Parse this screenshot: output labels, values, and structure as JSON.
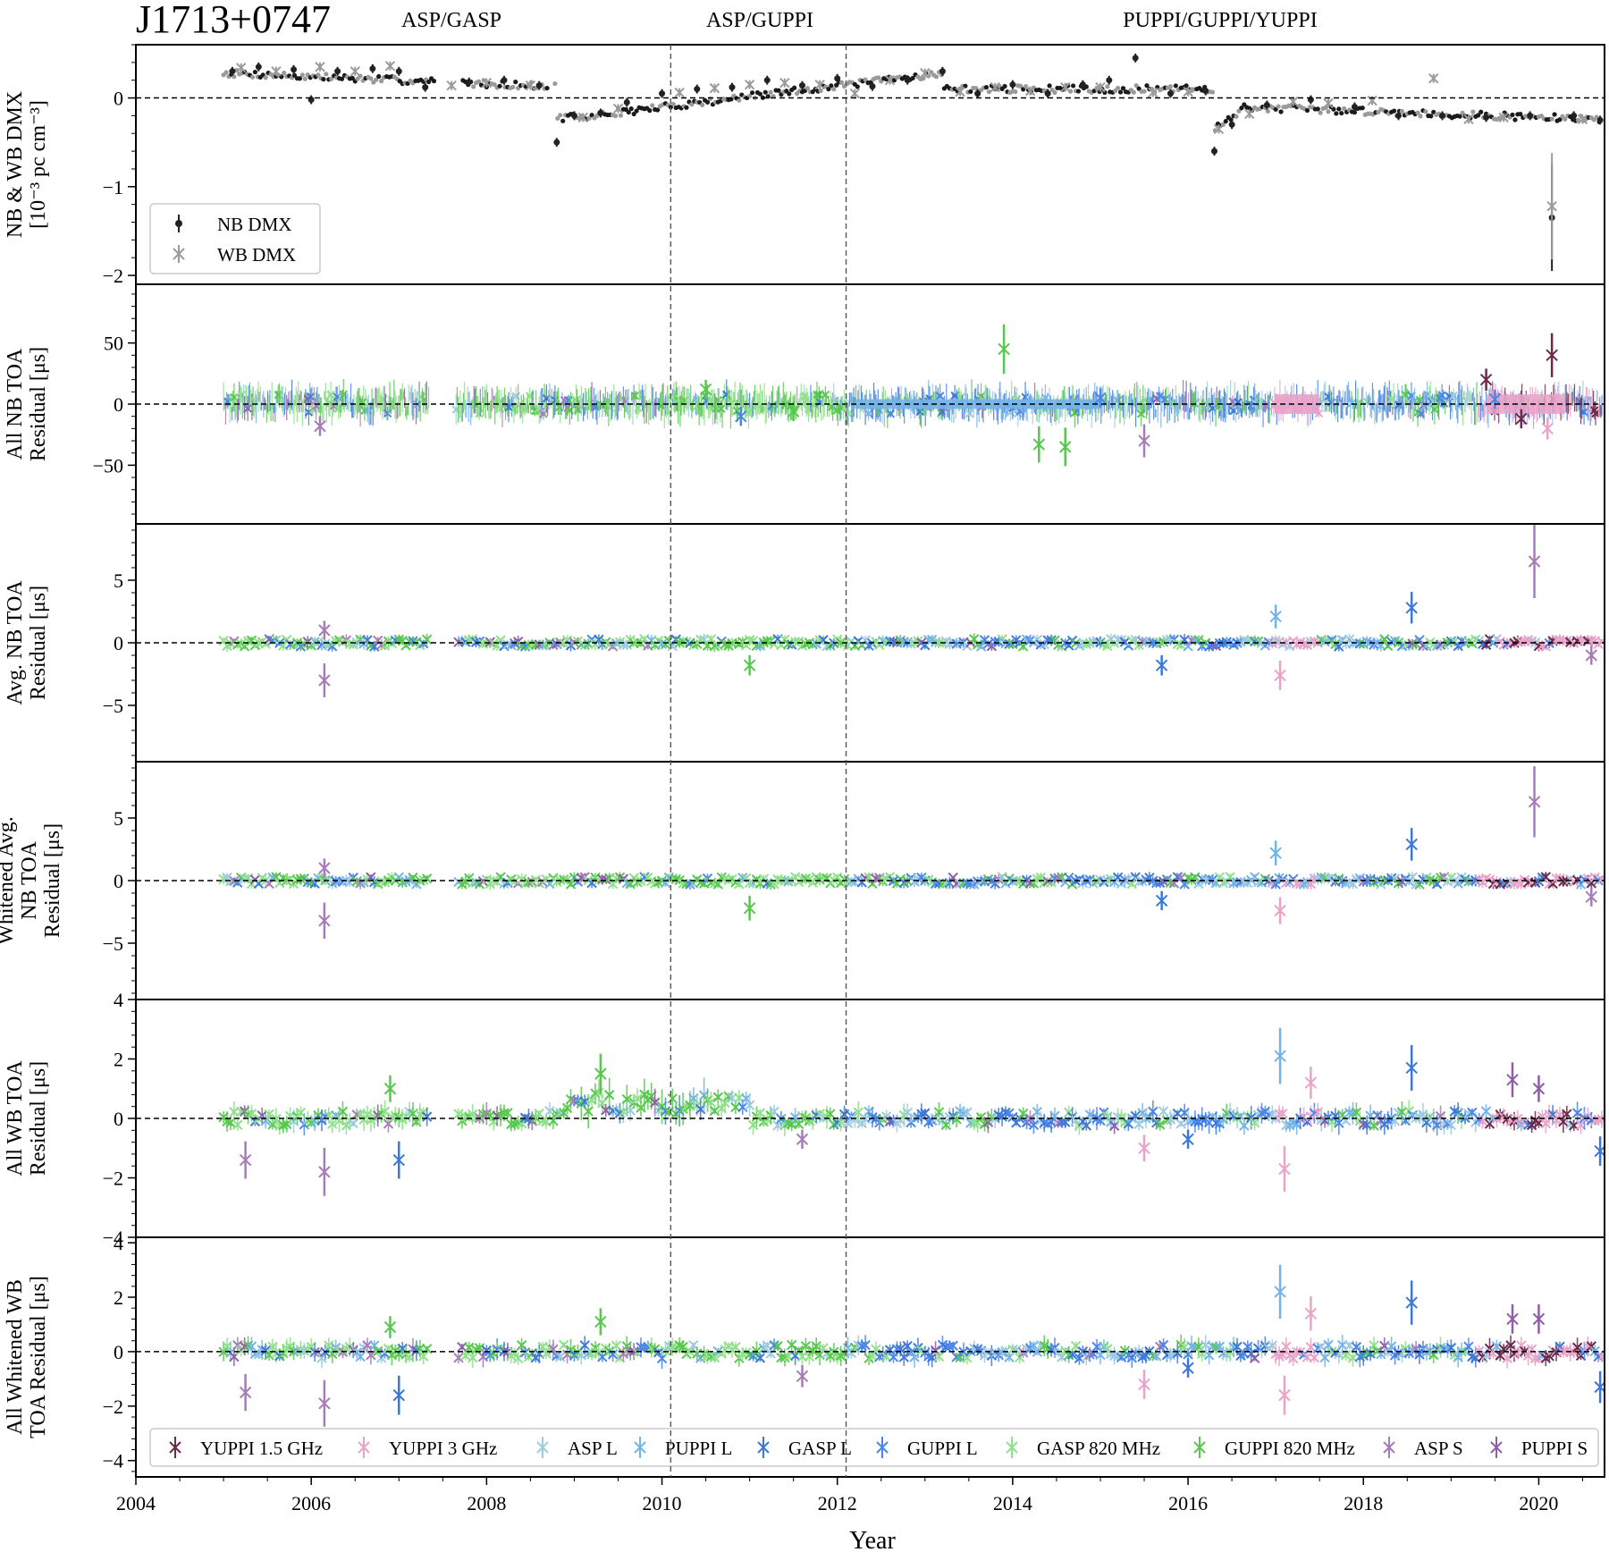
{
  "figure": {
    "title": "J1713+0747",
    "backends": [
      "ASP/GASP",
      "ASP/GUPPI",
      "PUPPI/GUPPI/YUPPI"
    ],
    "xlabel": "Year",
    "xticks": [
      2004,
      2006,
      2008,
      2010,
      2012,
      2014,
      2016,
      2018,
      2020
    ],
    "xlim": [
      2004.0,
      2020.75
    ],
    "vlines": [
      2010.1,
      2012.1
    ]
  },
  "legend_dmx": [
    {
      "name": "NB DMX",
      "color": "#222222"
    },
    {
      "name": "WB DMX",
      "color": "#9a9a9a"
    }
  ],
  "legend_receivers": [
    {
      "name": "YUPPI 1.5 GHz",
      "color": "#6b2a4a"
    },
    {
      "name": "YUPPI 3 GHz",
      "color": "#e9a3c9"
    },
    {
      "name": "ASP L",
      "color": "#9ecae1"
    },
    {
      "name": "PUPPI L",
      "color": "#74b3e8"
    },
    {
      "name": "GASP L",
      "color": "#3c78d8"
    },
    {
      "name": "GUPPI L",
      "color": "#4a86e8"
    },
    {
      "name": "GASP 820 MHz",
      "color": "#8fe08a"
    },
    {
      "name": "GUPPI 820 MHz",
      "color": "#57c84d"
    },
    {
      "name": "ASP S",
      "color": "#a77bb8"
    },
    {
      "name": "PUPPI S",
      "color": "#8e5ea6"
    }
  ],
  "chart_data": [
    {
      "type": "scatter",
      "panel": "dmx",
      "ylabel": [
        "NB & WB DMX",
        "[10⁻³ pc cm⁻³]"
      ],
      "ylim": [
        -2.1,
        0.6
      ],
      "yticks": [
        0,
        -1,
        -2
      ],
      "yticklabels": [
        "0",
        "−1",
        "−2"
      ],
      "series": [
        {
          "name": "NB DMX",
          "x": [
            2005.1,
            2005.4,
            2005.8,
            2006.0,
            2006.3,
            2006.7,
            2007.0,
            2007.3,
            2007.8,
            2008.2,
            2008.6,
            2008.8,
            2009.0,
            2009.3,
            2009.6,
            2010.0,
            2010.4,
            2010.8,
            2011.2,
            2011.6,
            2012.0,
            2012.4,
            2012.8,
            2013.2,
            2013.6,
            2014.0,
            2014.4,
            2014.8,
            2015.1,
            2015.4,
            2015.8,
            2016.2,
            2016.3,
            2016.5,
            2016.9,
            2017.4,
            2017.9,
            2018.4,
            2018.9,
            2019.4,
            2019.9,
            2020.15,
            2020.4,
            2020.7
          ],
          "y": [
            0.3,
            0.35,
            0.32,
            -0.02,
            0.3,
            0.33,
            0.3,
            0.12,
            0.18,
            0.2,
            0.14,
            -0.5,
            -0.2,
            -0.17,
            -0.05,
            0.05,
            0.1,
            0.12,
            0.2,
            0.14,
            0.22,
            0.13,
            0.2,
            0.3,
            0.05,
            0.15,
            0.05,
            0.15,
            0.2,
            0.45,
            0.05,
            0.08,
            -0.6,
            -0.3,
            -0.08,
            -0.02,
            -0.1,
            -0.2,
            -0.2,
            -0.22,
            -0.2,
            -1.35,
            -0.2,
            -0.25
          ]
        },
        {
          "name": "WB DMX",
          "x": [
            2005.2,
            2005.6,
            2006.1,
            2006.5,
            2006.9,
            2007.6,
            2008.0,
            2008.5,
            2009.1,
            2009.5,
            2010.2,
            2010.6,
            2011.0,
            2011.4,
            2011.8,
            2012.2,
            2012.6,
            2013.0,
            2013.4,
            2013.8,
            2014.2,
            2014.6,
            2015.0,
            2015.6,
            2016.0,
            2016.35,
            2016.7,
            2017.2,
            2017.6,
            2018.1,
            2018.8,
            2019.2,
            2019.6,
            2020.15,
            2020.5
          ],
          "y": [
            0.34,
            0.3,
            0.35,
            0.3,
            0.36,
            0.14,
            0.17,
            0.14,
            -0.22,
            -0.12,
            0.06,
            0.11,
            0.15,
            0.17,
            0.15,
            0.05,
            0.2,
            0.28,
            0.07,
            0.12,
            0.08,
            0.12,
            0.12,
            0.06,
            0.07,
            -0.35,
            -0.18,
            -0.04,
            -0.06,
            -0.03,
            0.22,
            -0.24,
            -0.22,
            -1.22,
            -0.24
          ]
        }
      ]
    },
    {
      "type": "scatter",
      "panel": "all_nb",
      "ylabel": [
        "All NB TOA",
        "Residual [μs]"
      ],
      "ylim": [
        -98,
        98
      ],
      "yticks": [
        50,
        0,
        -50
      ],
      "yticklabels": [
        "50",
        "0",
        "−50"
      ],
      "series": [
        {
          "name": "GUPPI 820 MHz",
          "x": [
            2010.5,
            2011.5,
            2013.9,
            2014.3,
            2014.6
          ],
          "y": [
            12,
            -6,
            45,
            -33,
            -35
          ]
        },
        {
          "name": "GUPPI L",
          "x": [
            2010.9,
            2015.0,
            2019.5
          ],
          "y": [
            -10,
            5,
            4
          ]
        },
        {
          "name": "YUPPI 1.5 GHz",
          "x": [
            2019.4,
            2019.8,
            2020.15
          ],
          "y": [
            20,
            -12,
            40
          ]
        },
        {
          "name": "YUPPI 3 GHz",
          "x": [
            2017.0,
            2019.7,
            2020.1
          ],
          "y": [
            0,
            2,
            -20
          ]
        },
        {
          "name": "ASP S",
          "x": [
            2006.1,
            2015.5
          ],
          "y": [
            -18,
            -30
          ]
        }
      ]
    },
    {
      "type": "scatter",
      "panel": "avg_nb",
      "ylabel": [
        "Avg. NB TOA",
        "Residual [μs]"
      ],
      "ylim": [
        -9.5,
        9.5
      ],
      "yticks": [
        5,
        0,
        -5
      ],
      "yticklabels": [
        "5",
        "0",
        "−5"
      ],
      "series": [
        {
          "name": "ASP S",
          "x": [
            2006.15,
            2006.15,
            2019.95,
            2020.6
          ],
          "y": [
            -3.0,
            1.0,
            6.5,
            -1.0
          ]
        },
        {
          "name": "GUPPI 820 MHz",
          "x": [
            2011.0
          ],
          "y": [
            -1.8
          ]
        },
        {
          "name": "GASP L",
          "x": [
            2015.7,
            2018.55
          ],
          "y": [
            -1.8,
            2.8
          ]
        },
        {
          "name": "YUPPI 3 GHz",
          "x": [
            2017.05
          ],
          "y": [
            -2.6
          ]
        },
        {
          "name": "PUPPI L",
          "x": [
            2017.0
          ],
          "y": [
            2.1
          ]
        }
      ]
    },
    {
      "type": "scatter",
      "panel": "whitened_avg_nb",
      "ylabel": [
        "Whitened Avg.",
        "NB TOA",
        "Residual [μs]"
      ],
      "ylim": [
        -9.5,
        9.5
      ],
      "yticks": [
        5,
        0,
        -5
      ],
      "yticklabels": [
        "5",
        "0",
        "−5"
      ],
      "series": [
        {
          "name": "ASP S",
          "x": [
            2006.15,
            2006.15,
            2019.95,
            2020.6
          ],
          "y": [
            -3.2,
            1.0,
            6.3,
            -1.3
          ]
        },
        {
          "name": "GUPPI 820 MHz",
          "x": [
            2011.0
          ],
          "y": [
            -2.2
          ]
        },
        {
          "name": "GASP L",
          "x": [
            2015.7,
            2018.55
          ],
          "y": [
            -1.6,
            2.9
          ]
        },
        {
          "name": "YUPPI 3 GHz",
          "x": [
            2017.05
          ],
          "y": [
            -2.4
          ]
        },
        {
          "name": "PUPPI L",
          "x": [
            2017.0
          ],
          "y": [
            2.2
          ]
        }
      ]
    },
    {
      "type": "scatter",
      "panel": "all_wb",
      "ylabel": [
        "All WB TOA",
        "Residual [μs]"
      ],
      "ylim": [
        -4.0,
        4.0
      ],
      "yticks": [
        4,
        2,
        0,
        -2,
        -4
      ],
      "yticklabels": [
        "4",
        "2",
        "0",
        "−2",
        "−4"
      ],
      "series": [
        {
          "name": "ASP S",
          "x": [
            2005.25,
            2006.15,
            2011.6
          ],
          "y": [
            -1.4,
            -1.8,
            -0.7
          ]
        },
        {
          "name": "GASP L",
          "x": [
            2007.0,
            2016.0,
            2018.55,
            2020.7
          ],
          "y": [
            -1.4,
            -0.7,
            1.7,
            -1.1
          ]
        },
        {
          "name": "GUPPI 820 MHz",
          "x": [
            2006.9,
            2009.3
          ],
          "y": [
            1.0,
            1.5
          ]
        },
        {
          "name": "YUPPI 3 GHz",
          "x": [
            2015.5,
            2017.1,
            2017.4
          ],
          "y": [
            -1.0,
            -1.7,
            1.2
          ]
        },
        {
          "name": "PUPPI L",
          "x": [
            2017.05
          ],
          "y": [
            2.1
          ]
        },
        {
          "name": "PUPPI S",
          "x": [
            2019.7,
            2020.0
          ],
          "y": [
            1.3,
            1.0
          ]
        }
      ]
    },
    {
      "type": "scatter",
      "panel": "all_whitened_wb",
      "ylabel": [
        "All Whitened WB",
        "TOA Residual [μs]"
      ],
      "ylim": [
        -4.6,
        4.2
      ],
      "yticks": [
        4,
        2,
        0,
        -2,
        -4
      ],
      "yticklabels": [
        "4",
        "2",
        "0",
        "−2",
        "−4"
      ],
      "series": [
        {
          "name": "ASP S",
          "x": [
            2005.25,
            2006.15,
            2011.6
          ],
          "y": [
            -1.5,
            -1.9,
            -0.9
          ]
        },
        {
          "name": "GASP L",
          "x": [
            2007.0,
            2016.0,
            2018.55,
            2020.7
          ],
          "y": [
            -1.6,
            -0.6,
            1.8,
            -1.3
          ]
        },
        {
          "name": "GUPPI 820 MHz",
          "x": [
            2006.9,
            2009.3
          ],
          "y": [
            0.9,
            1.1
          ]
        },
        {
          "name": "YUPPI 3 GHz",
          "x": [
            2015.5,
            2017.1,
            2017.4
          ],
          "y": [
            -1.2,
            -1.6,
            1.4
          ]
        },
        {
          "name": "PUPPI L",
          "x": [
            2017.05
          ],
          "y": [
            2.2
          ]
        },
        {
          "name": "PUPPI S",
          "x": [
            2019.7,
            2020.0
          ],
          "y": [
            1.2,
            1.2
          ]
        }
      ]
    }
  ]
}
